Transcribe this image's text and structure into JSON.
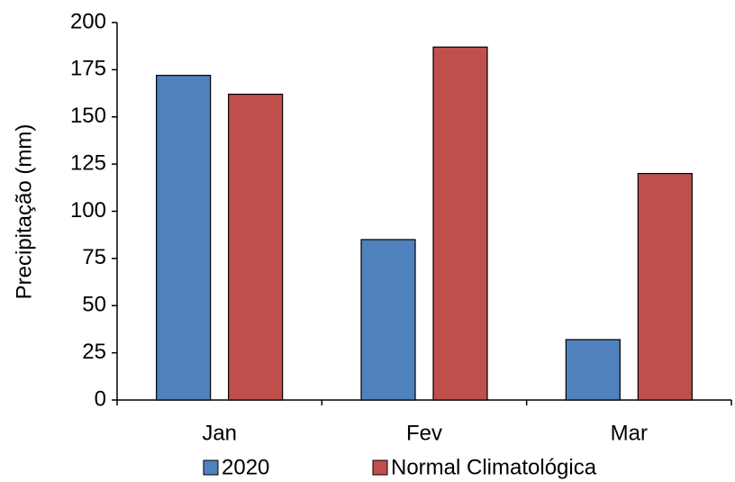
{
  "chart_data": {
    "type": "bar",
    "y_label": "Precipitação (mm)",
    "categories": [
      "Jan",
      "Fev",
      "Mar"
    ],
    "series": [
      {
        "name": "2020",
        "color": "#4f81bd",
        "values": [
          172,
          85,
          32
        ]
      },
      {
        "name": "Normal Climatológica",
        "color": "#c0504d",
        "values": [
          162,
          187,
          120
        ]
      }
    ],
    "ylim": [
      0,
      200
    ],
    "yticks": [
      0,
      25,
      50,
      75,
      100,
      125,
      150,
      175,
      200
    ],
    "grid": false,
    "legend": "bottom"
  }
}
